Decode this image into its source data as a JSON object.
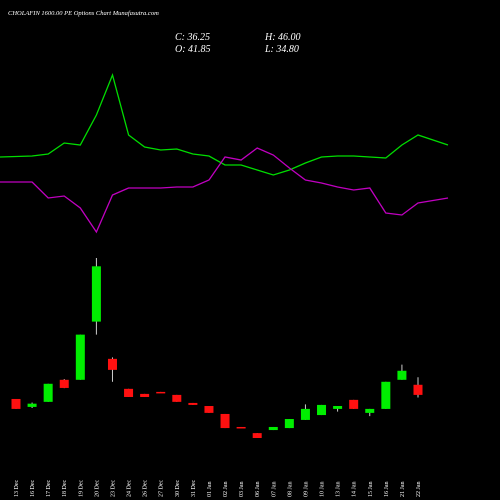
{
  "chart_data": {
    "type": "candlestick",
    "title": "CHOLAFIN 1600.00 PE Options Chart Munafasutra.com",
    "ohlc_labels": [
      "C: 36.25",
      "H: 46.00",
      "O: 41.85",
      "L: 34.80"
    ],
    "up_color": "#00ee00",
    "down_color": "#ff1010",
    "candles": [
      {
        "date": "13 Dec",
        "open": 34.0,
        "high": 34.0,
        "low": 28.5,
        "close": 28.5
      },
      {
        "date": "16 Dec",
        "open": 29.6,
        "high": 32.0,
        "low": 29.0,
        "close": 31.4
      },
      {
        "date": "17 Dec",
        "open": 32.4,
        "high": 42.4,
        "low": 32.4,
        "close": 42.4
      },
      {
        "date": "18 Dec",
        "open": 44.6,
        "high": 45.0,
        "low": 40.0,
        "close": 40.1
      },
      {
        "date": "19 Dec",
        "open": 44.6,
        "high": 69.6,
        "low": 44.6,
        "close": 69.6
      },
      {
        "date": "20 Dec",
        "open": 76.8,
        "high": 112.0,
        "low": 69.6,
        "close": 107.4
      },
      {
        "date": "23 Dec",
        "open": 56.2,
        "high": 57.0,
        "low": 43.5,
        "close": 50.1
      },
      {
        "date": "24 Dec",
        "open": 39.6,
        "high": 39.6,
        "low": 35.1,
        "close": 35.1
      },
      {
        "date": "26 Dec",
        "open": 36.8,
        "high": 36.8,
        "low": 35.1,
        "close": 35.1
      },
      {
        "date": "27 Dec",
        "open": 37.9,
        "high": 37.9,
        "low": 37.4,
        "close": 37.4
      },
      {
        "date": "30 Dec",
        "open": 36.25,
        "high": 36.25,
        "low": 32.4,
        "close": 32.4
      },
      {
        "date": "31 Dec",
        "open": 31.8,
        "high": 31.8,
        "low": 30.7,
        "close": 30.7
      },
      {
        "date": "01 Jan",
        "open": 30.1,
        "high": 30.1,
        "low": 26.3,
        "close": 26.3
      },
      {
        "date": "02 Jan",
        "open": 25.7,
        "high": 25.7,
        "low": 17.9,
        "close": 17.9
      },
      {
        "date": "03 Jan",
        "open": 18.5,
        "high": 18.5,
        "low": 17.9,
        "close": 17.9
      },
      {
        "date": "06 Jan",
        "open": 15.1,
        "high": 15.1,
        "low": 12.4,
        "close": 12.4
      },
      {
        "date": "07 Jan",
        "open": 16.8,
        "high": 18.5,
        "low": 16.8,
        "close": 18.5
      },
      {
        "date": "08 Jan",
        "open": 17.9,
        "high": 22.9,
        "low": 17.9,
        "close": 22.9
      },
      {
        "date": "09 Jan",
        "open": 22.4,
        "high": 31.0,
        "low": 22.4,
        "close": 28.5
      },
      {
        "date": "10 Jan",
        "open": 25.1,
        "high": 30.7,
        "low": 25.1,
        "close": 30.7
      },
      {
        "date": "13 Jan",
        "open": 28.5,
        "high": 30.1,
        "low": 27.0,
        "close": 30.1
      },
      {
        "date": "14 Jan",
        "open": 33.5,
        "high": 33.5,
        "low": 28.5,
        "close": 28.5
      },
      {
        "date": "15 Jan",
        "open": 26.3,
        "high": 28.5,
        "low": 24.5,
        "close": 28.5
      },
      {
        "date": "16 Jan",
        "open": 28.5,
        "high": 43.5,
        "low": 28.5,
        "close": 43.5
      },
      {
        "date": "21 Jan",
        "open": 44.6,
        "high": 53.0,
        "low": 44.6,
        "close": 49.6
      },
      {
        "date": "22 Jan",
        "open": 41.85,
        "high": 46.0,
        "low": 34.8,
        "close": 36.25
      }
    ],
    "series": [
      {
        "color": "#00dd00",
        "values": [
          343,
          344,
          346,
          357,
          355,
          385,
          425,
          365,
          353,
          350,
          351,
          346,
          344,
          335,
          335,
          330,
          325,
          330,
          337,
          343,
          344,
          344,
          343,
          342,
          355,
          365
        ]
      },
      {
        "color": "#c000c0",
        "values": [
          318,
          318,
          302,
          304,
          292,
          268,
          305,
          312,
          312,
          312,
          313,
          313,
          320,
          343,
          340,
          352,
          345,
          332,
          320,
          317,
          313,
          310,
          312,
          287,
          285,
          297
        ]
      }
    ]
  }
}
